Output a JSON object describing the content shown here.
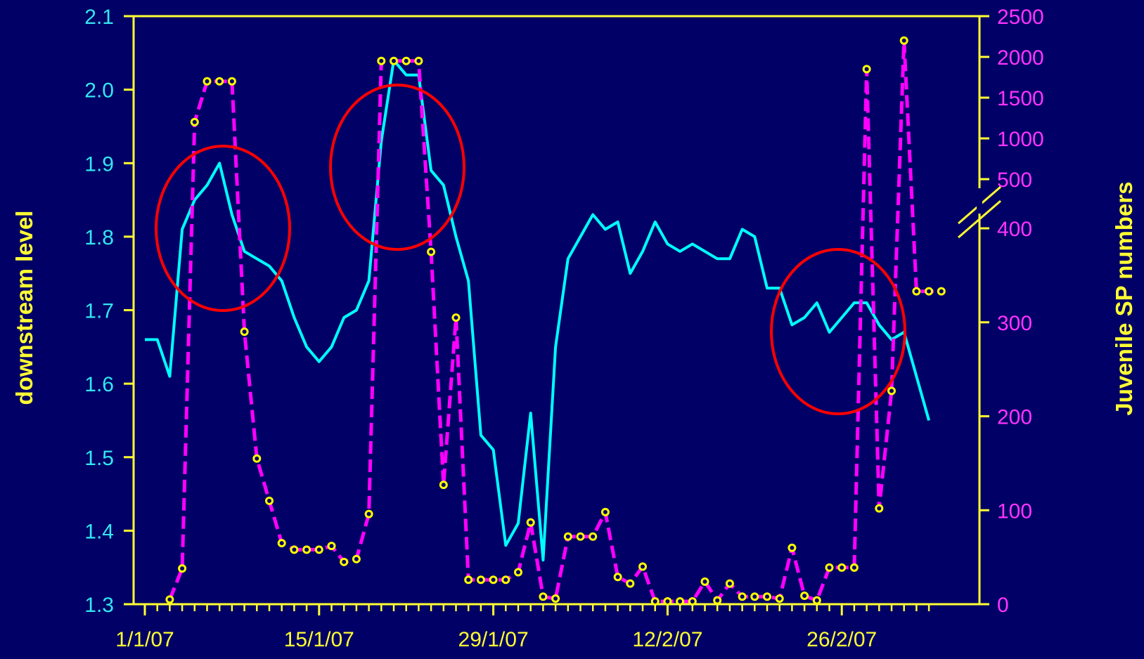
{
  "chart_data": {
    "type": "line",
    "title": "",
    "left_axis": {
      "label": "downstream level",
      "range": [
        1.3,
        2.1
      ],
      "ticks": [
        "1.3",
        "1.4",
        "1.5",
        "1.6",
        "1.7",
        "1.8",
        "1.9",
        "2.0",
        "2.1"
      ]
    },
    "right_axis": {
      "label": "Juvenile SP numbers",
      "broken_scale": true,
      "lower_range": [
        0,
        400
      ],
      "upper_range": [
        500,
        2500
      ],
      "lower_ticks": [
        "0",
        "100",
        "200",
        "300",
        "400"
      ],
      "upper_ticks": [
        "500",
        "1000",
        "1500",
        "2000",
        "2500"
      ]
    },
    "x_axis": {
      "start_date": "1/1/07",
      "tick_labels": [
        "1/1/07",
        "15/1/07",
        "29/1/07",
        "12/2/07",
        "26/2/07"
      ]
    },
    "colors": {
      "background": "#000066",
      "downstream_level": "#00ffff",
      "juvenile_sp": "#ff00ff",
      "markers": "#ffff00",
      "axes": "#ffff33",
      "highlight_circles": "#ff0000"
    },
    "series": [
      {
        "name": "downstream level",
        "axis": "left",
        "style": "solid",
        "points": [
          [
            "1/1/07",
            1.66
          ],
          [
            "2/1/07",
            1.66
          ],
          [
            "3/1/07",
            1.61
          ],
          [
            "4/1/07",
            1.81
          ],
          [
            "5/1/07",
            1.85
          ],
          [
            "6/1/07",
            1.87
          ],
          [
            "7/1/07",
            1.9
          ],
          [
            "8/1/07",
            1.83
          ],
          [
            "9/1/07",
            1.78
          ],
          [
            "10/1/07",
            1.77
          ],
          [
            "11/1/07",
            1.76
          ],
          [
            "12/1/07",
            1.74
          ],
          [
            "13/1/07",
            1.69
          ],
          [
            "14/1/07",
            1.65
          ],
          [
            "15/1/07",
            1.63
          ],
          [
            "16/1/07",
            1.65
          ],
          [
            "17/1/07",
            1.69
          ],
          [
            "18/1/07",
            1.7
          ],
          [
            "19/1/07",
            1.74
          ],
          [
            "20/1/07",
            1.93
          ],
          [
            "21/1/07",
            2.04
          ],
          [
            "22/1/07",
            2.02
          ],
          [
            "23/1/07",
            2.02
          ],
          [
            "24/1/07",
            1.89
          ],
          [
            "25/1/07",
            1.87
          ],
          [
            "26/1/07",
            1.8
          ],
          [
            "27/1/07",
            1.74
          ],
          [
            "28/1/07",
            1.53
          ],
          [
            "29/1/07",
            1.51
          ],
          [
            "30/1/07",
            1.38
          ],
          [
            "31/1/07",
            1.41
          ],
          [
            "1/2/07",
            1.56
          ],
          [
            "2/2/07",
            1.36
          ],
          [
            "3/2/07",
            1.65
          ],
          [
            "4/2/07",
            1.77
          ],
          [
            "5/2/07",
            1.8
          ],
          [
            "6/2/07",
            1.83
          ],
          [
            "7/2/07",
            1.81
          ],
          [
            "8/2/07",
            1.82
          ],
          [
            "9/2/07",
            1.75
          ],
          [
            "10/2/07",
            1.78
          ],
          [
            "11/2/07",
            1.82
          ],
          [
            "12/2/07",
            1.79
          ],
          [
            "13/2/07",
            1.78
          ],
          [
            "14/2/07",
            1.79
          ],
          [
            "15/2/07",
            1.78
          ],
          [
            "16/2/07",
            1.77
          ],
          [
            "17/2/07",
            1.77
          ],
          [
            "18/2/07",
            1.81
          ],
          [
            "19/2/07",
            1.8
          ],
          [
            "20/2/07",
            1.73
          ],
          [
            "21/2/07",
            1.73
          ],
          [
            "22/2/07",
            1.68
          ],
          [
            "23/2/07",
            1.69
          ],
          [
            "24/2/07",
            1.71
          ],
          [
            "25/2/07",
            1.67
          ],
          [
            "26/2/07",
            1.69
          ],
          [
            "27/2/07",
            1.71
          ],
          [
            "28/2/07",
            1.71
          ],
          [
            "1/3/07",
            1.68
          ],
          [
            "2/3/07",
            1.66
          ],
          [
            "3/3/07",
            1.67
          ],
          [
            "4/3/07",
            1.61
          ],
          [
            "5/3/07",
            1.55
          ]
        ]
      },
      {
        "name": "Juvenile SP numbers",
        "axis": "right",
        "style": "dashed",
        "markers": true,
        "points": [
          [
            "3/1/07",
            5
          ],
          [
            "4/1/07",
            38
          ],
          [
            "5/1/07",
            1200
          ],
          [
            "6/1/07",
            1700
          ],
          [
            "7/1/07",
            1700
          ],
          [
            "8/1/07",
            1700
          ],
          [
            "9/1/07",
            290
          ],
          [
            "10/1/07",
            155
          ],
          [
            "11/1/07",
            110
          ],
          [
            "12/1/07",
            65
          ],
          [
            "13/1/07",
            58
          ],
          [
            "14/1/07",
            58
          ],
          [
            "15/1/07",
            58
          ],
          [
            "16/1/07",
            62
          ],
          [
            "17/1/07",
            45
          ],
          [
            "18/1/07",
            48
          ],
          [
            "19/1/07",
            96
          ],
          [
            "20/1/07",
            1950
          ],
          [
            "21/1/07",
            1950
          ],
          [
            "22/1/07",
            1950
          ],
          [
            "23/1/07",
            1950
          ],
          [
            "24/1/07",
            375
          ],
          [
            "25/1/07",
            127
          ],
          [
            "26/1/07",
            305
          ],
          [
            "27/1/07",
            26
          ],
          [
            "28/1/07",
            26
          ],
          [
            "29/1/07",
            26
          ],
          [
            "30/1/07",
            26
          ],
          [
            "31/1/07",
            34
          ],
          [
            "1/2/07",
            87
          ],
          [
            "2/2/07",
            8
          ],
          [
            "3/2/07",
            6
          ],
          [
            "4/2/07",
            72
          ],
          [
            "5/2/07",
            72
          ],
          [
            "6/2/07",
            72
          ],
          [
            "7/2/07",
            98
          ],
          [
            "8/2/07",
            29
          ],
          [
            "9/2/07",
            22
          ],
          [
            "10/2/07",
            40
          ],
          [
            "11/2/07",
            3
          ],
          [
            "12/2/07",
            3
          ],
          [
            "13/2/07",
            3
          ],
          [
            "14/2/07",
            3
          ],
          [
            "15/2/07",
            24
          ],
          [
            "16/2/07",
            4
          ],
          [
            "17/2/07",
            22
          ],
          [
            "18/2/07",
            8
          ],
          [
            "19/2/07",
            8
          ],
          [
            "20/2/07",
            8
          ],
          [
            "21/2/07",
            6
          ],
          [
            "22/2/07",
            60
          ],
          [
            "23/2/07",
            9
          ],
          [
            "24/2/07",
            4
          ],
          [
            "25/2/07",
            39
          ],
          [
            "26/2/07",
            39
          ],
          [
            "27/2/07",
            39
          ],
          [
            "28/2/07",
            1850
          ],
          [
            "1/3/07",
            102
          ],
          [
            "2/3/07",
            227
          ],
          [
            "3/3/07",
            2200
          ],
          [
            "4/3/07",
            333
          ],
          [
            "5/3/07",
            333
          ],
          [
            "6/3/07",
            333
          ]
        ]
      }
    ]
  }
}
